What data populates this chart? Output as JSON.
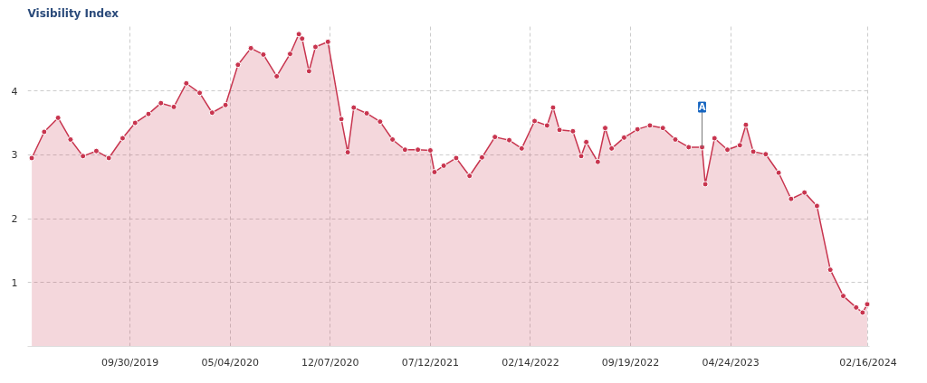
{
  "chart_data": {
    "type": "area",
    "title": "Visibility Index",
    "x": [
      "2019-03-01",
      "2019-03-28",
      "2019-04-27",
      "2019-05-24",
      "2019-06-20",
      "2019-07-19",
      "2019-08-15",
      "2019-09-14",
      "2019-10-11",
      "2019-11-09",
      "2019-12-06",
      "2020-01-03",
      "2020-01-30",
      "2020-02-28",
      "2020-03-26",
      "2020-04-24",
      "2020-05-21",
      "2020-06-18",
      "2020-07-15",
      "2020-08-13",
      "2020-09-11",
      "2020-09-30",
      "2020-10-07",
      "2020-10-22",
      "2020-11-05",
      "2020-12-02",
      "2020-12-31",
      "2021-01-14",
      "2021-01-27",
      "2021-02-24",
      "2021-03-25",
      "2021-04-21",
      "2021-05-18",
      "2021-06-15",
      "2021-07-12",
      "2021-07-21",
      "2021-08-10",
      "2021-09-06",
      "2021-10-05",
      "2021-11-01",
      "2021-11-29",
      "2021-12-30",
      "2022-01-26",
      "2022-02-23",
      "2022-03-22",
      "2022-04-04",
      "2022-04-18",
      "2022-05-17",
      "2022-06-04",
      "2022-06-15",
      "2022-07-10",
      "2022-07-26",
      "2022-08-09",
      "2022-09-05",
      "2022-10-04",
      "2022-10-31",
      "2022-11-28",
      "2022-12-25",
      "2023-01-23",
      "2023-02-21",
      "2023-02-28",
      "2023-03-20",
      "2023-04-17",
      "2023-05-14",
      "2023-05-27",
      "2023-06-12",
      "2023-07-09",
      "2023-08-06",
      "2023-09-02",
      "2023-10-01",
      "2023-10-28",
      "2023-11-26",
      "2023-12-24",
      "2024-01-21",
      "2024-02-04",
      "2024-02-14"
    ],
    "series": [
      {
        "color": "#c8354f",
        "values": [
          2.95,
          3.36,
          3.58,
          3.24,
          2.98,
          3.06,
          2.95,
          3.26,
          3.5,
          3.64,
          3.81,
          3.75,
          4.12,
          3.97,
          3.66,
          3.78,
          4.41,
          4.67,
          4.57,
          4.23,
          4.58,
          4.89,
          4.82,
          4.31,
          4.69,
          4.77,
          3.56,
          3.04,
          3.74,
          3.65,
          3.52,
          3.24,
          3.08,
          3.08,
          3.07,
          2.73,
          2.83,
          2.95,
          2.67,
          2.96,
          3.28,
          3.23,
          3.1,
          3.53,
          3.46,
          3.74,
          3.39,
          3.37,
          2.98,
          3.2,
          2.89,
          3.42,
          3.1,
          3.27,
          3.4,
          3.46,
          3.42,
          3.24,
          3.12,
          3.12,
          2.54,
          3.26,
          3.08,
          3.15,
          3.47,
          3.05,
          3.01,
          2.72,
          2.31,
          2.41,
          2.2,
          1.2,
          0.79,
          0.61,
          0.53,
          0.66
        ]
      }
    ],
    "xlim": [
      "2019-02-20",
      "2024-02-19"
    ],
    "xticks": [
      {
        "value": "2019-09-30",
        "label": "09/30/2019"
      },
      {
        "value": "2020-05-04",
        "label": "05/04/2020"
      },
      {
        "value": "2020-12-07",
        "label": "12/07/2020"
      },
      {
        "value": "2021-07-12",
        "label": "07/12/2021"
      },
      {
        "value": "2022-02-14",
        "label": "02/14/2022"
      },
      {
        "value": "2022-09-19",
        "label": "09/19/2022"
      },
      {
        "value": "2023-04-24",
        "label": "04/24/2023"
      },
      {
        "value": "2024-02-16",
        "label": "02/16/2024"
      }
    ],
    "ylim": [
      0,
      5.05
    ],
    "yticks": [
      1,
      2,
      3,
      4
    ],
    "grid": true,
    "marker": "circle",
    "annotations": [
      {
        "text": "A",
        "x": "2023-02-21",
        "y": 3.12
      }
    ]
  }
}
